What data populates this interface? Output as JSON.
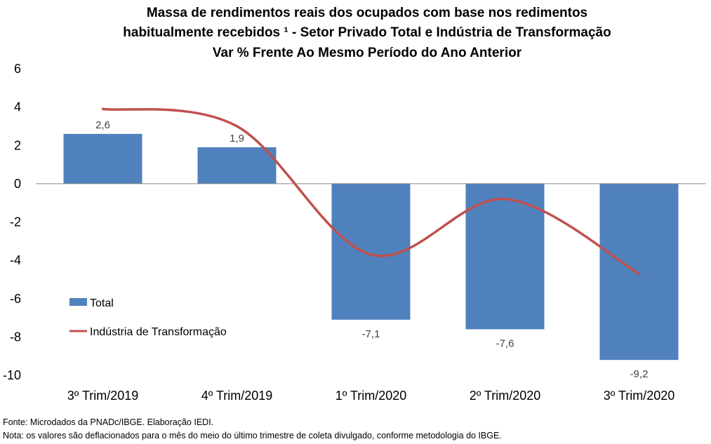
{
  "chart_data": {
    "type": "bar",
    "title_lines": [
      "Massa de rendimentos reais dos ocupados com base nos redimentos",
      "habitualmente recebidos ¹ - Setor Privado Total e Indústria de Transformação",
      "Var % Frente Ao Mesmo Período do Ano Anterior"
    ],
    "categories": [
      "3º Trim/2019",
      "4º Trim/2019",
      "1º Trim/2020",
      "2º Trim/2020",
      "3º Trim/2020"
    ],
    "series": [
      {
        "name": "Total",
        "kind": "bar",
        "color": "#4F81BD",
        "values": [
          2.6,
          1.9,
          -7.1,
          -7.6,
          -9.2
        ],
        "data_labels": [
          "2,6",
          "1,9",
          "-7,1",
          "-7,6",
          "-9,2"
        ]
      },
      {
        "name": "Indústria de Transformação",
        "kind": "line",
        "smooth": true,
        "color": "#C0504D",
        "values": [
          3.9,
          3.0,
          -3.7,
          -0.8,
          -4.7
        ]
      }
    ],
    "ylim": [
      -10,
      6
    ],
    "yticks": [
      6,
      4,
      2,
      0,
      -2,
      -4,
      -6,
      -8,
      -10
    ],
    "grid": false,
    "legend_position": "left-inside"
  },
  "footnotes": {
    "source": "Fonte: Microdados da PNADc/IBGE. Elaboração IEDI.",
    "note": "Nota: os valores são deflacionados para o mês do meio do último trimestre de coleta divulgado, conforme metodologia do IBGE."
  }
}
